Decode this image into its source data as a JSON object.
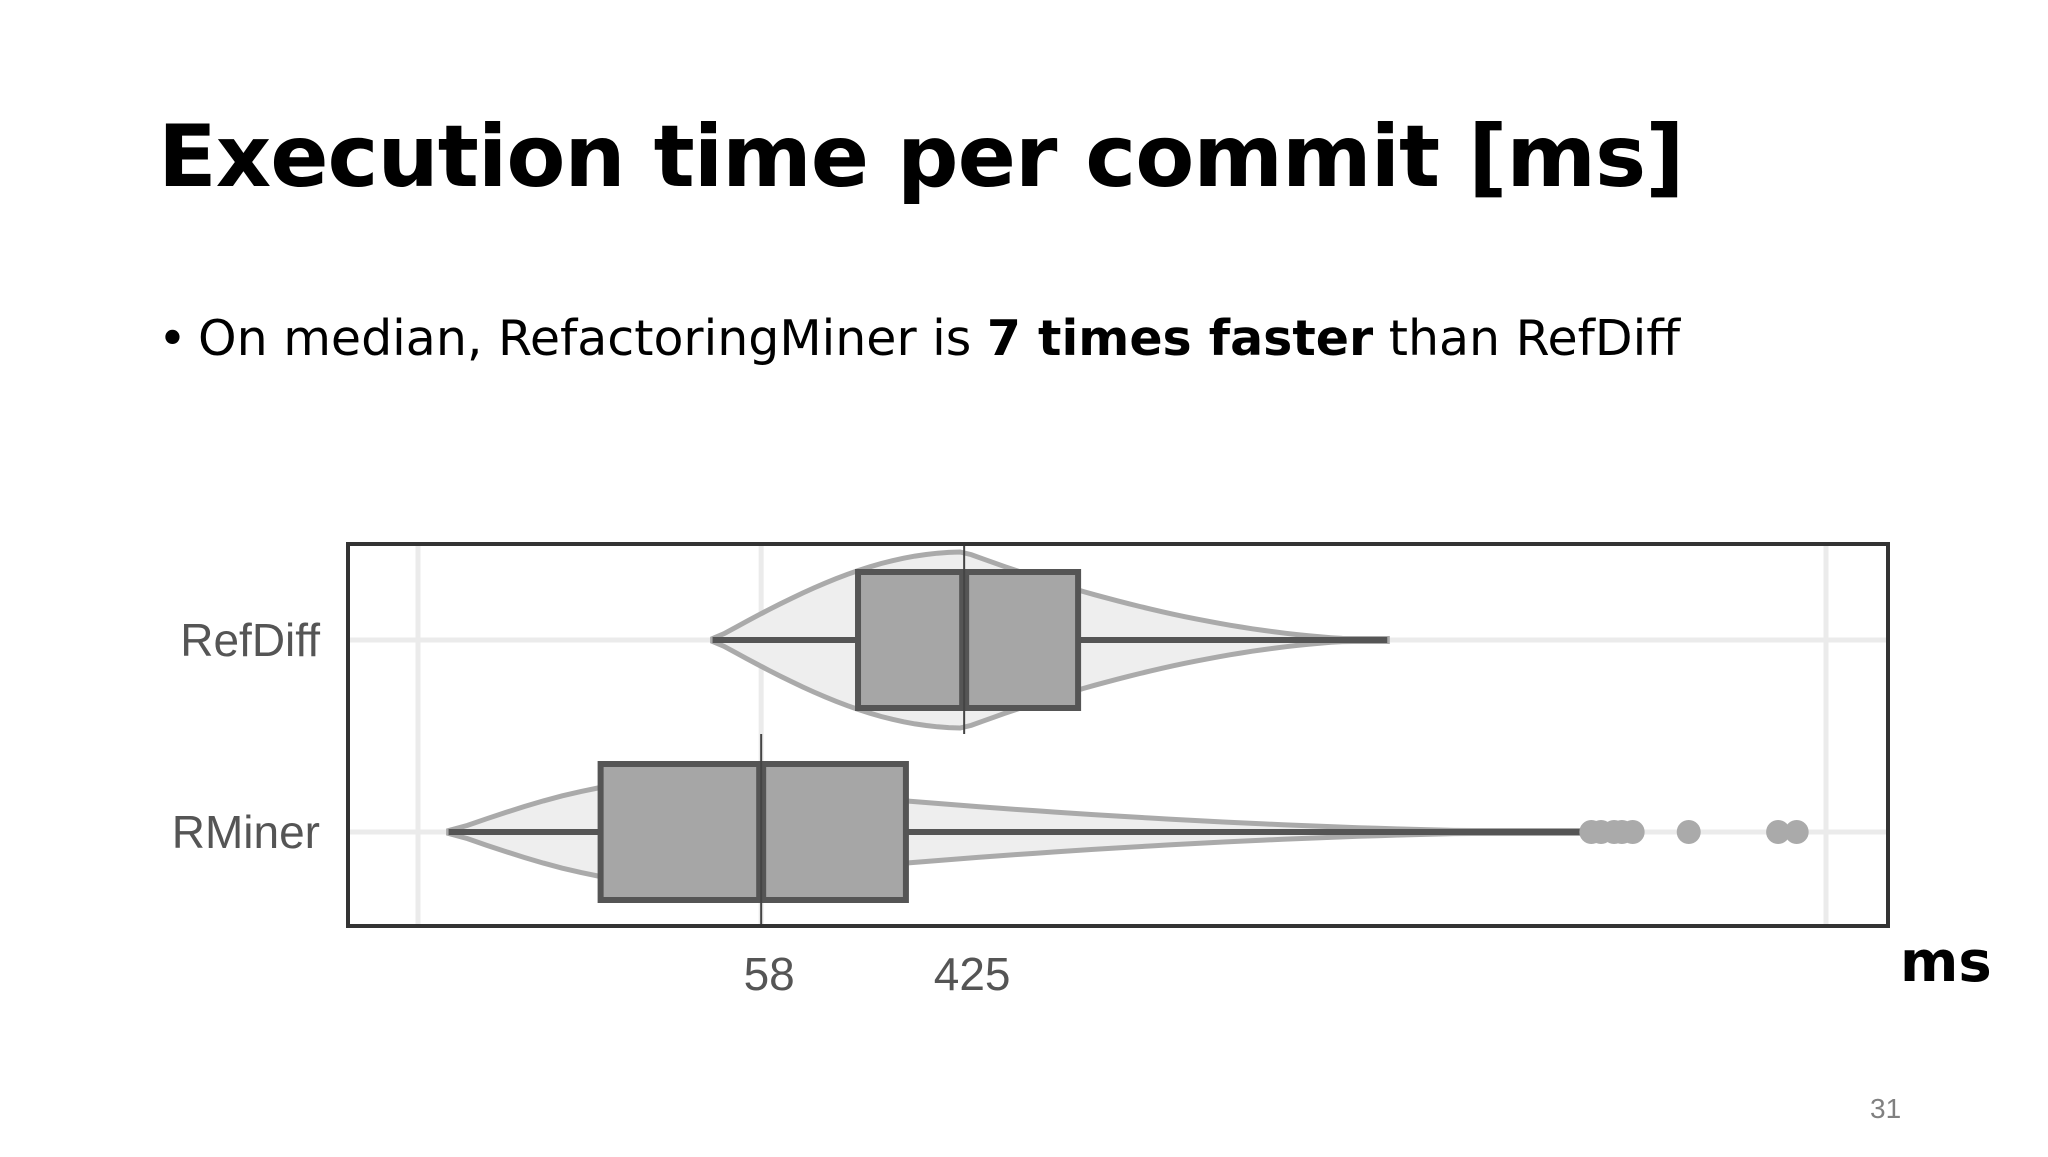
{
  "slide": {
    "title": "Execution time per commit [ms]",
    "bullet_prefix": "On median, RefactoringMiner is ",
    "bullet_bold": "7 times faster",
    "bullet_suffix": " than RefDiff",
    "slide_number": "31",
    "unit_label": "ms"
  },
  "chart_data": {
    "type": "boxplot",
    "orientation": "horizontal",
    "x_scale": "log",
    "title": "",
    "xlabel": "ms",
    "ylabel": "",
    "xlim": [
      2,
      2000000
    ],
    "x_ticks": [
      58,
      425
    ],
    "x_tick_labels": [
      "58",
      "425"
    ],
    "grid": true,
    "categories": [
      "RefDiff",
      "RMiner"
    ],
    "series": [
      {
        "name": "RefDiff",
        "min": 36,
        "q1": 150,
        "median": 425,
        "q3": 1300,
        "max": 27000,
        "outliers": []
      },
      {
        "name": "RMiner",
        "min": 2.7,
        "q1": 12,
        "median": 58,
        "q3": 240,
        "max": 190000,
        "outliers": [
          200000,
          220000,
          250000,
          270000,
          300000,
          520000,
          1250000,
          1500000
        ]
      }
    ],
    "colors": {
      "box_fill": "#a6a6a6",
      "box_stroke": "#555555",
      "violin_fill": "#eeeeee",
      "violin_stroke": "#aaaaaa",
      "outlier": "#aaaaaa",
      "grid": "#ebebeb",
      "frame": "#333333",
      "tick_text": "#555555"
    }
  }
}
